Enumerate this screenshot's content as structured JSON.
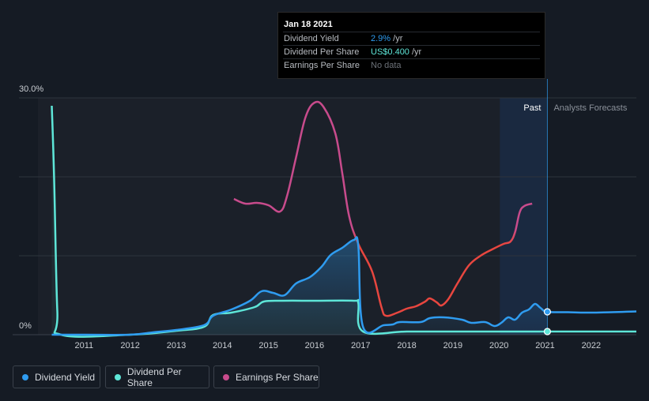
{
  "tooltip": {
    "date": "Jan 18 2021",
    "rows": [
      {
        "label": "Dividend Yield",
        "value": "2.9%",
        "unit": " /yr",
        "color": "#2f9cf0"
      },
      {
        "label": "Dividend Per Share",
        "value": "US$0.400",
        "unit": " /yr",
        "color": "#5ee6d8"
      },
      {
        "label": "Earnings Per Share",
        "value": "No data",
        "unit": "",
        "color": "#6c7178"
      }
    ]
  },
  "legend": {
    "items": [
      {
        "label": "Dividend Yield",
        "color": "#2f9cf0"
      },
      {
        "label": "Dividend Per Share",
        "color": "#5ee6d8"
      },
      {
        "label": "Earnings Per Share",
        "color": "#c84b8c"
      }
    ]
  },
  "colors": {
    "background": "#151b24",
    "yield": "#2f9cf0",
    "dps": "#5ee6d8",
    "eps_high": "#c84b8c",
    "eps_low": "#e8463f",
    "grid": "#2d343d"
  },
  "chart_data": {
    "type": "line",
    "y_top_label": "30.0%",
    "y_bottom_label": "0%",
    "ylim": [
      0,
      30
    ],
    "xlim": [
      2010.0,
      2022.98
    ],
    "x_ticks": [
      "2011",
      "2012",
      "2013",
      "2014",
      "2015",
      "2016",
      "2017",
      "2018",
      "2019",
      "2020",
      "2021",
      "2022"
    ],
    "past_label": "Past",
    "forecast_label": "Analysts Forecasts",
    "highlight_start": 2020.02,
    "divider_x": 2021.05,
    "series": [
      {
        "name": "Dividend Yield",
        "color": "#2f9cf0",
        "points": [
          [
            2010.3,
            0
          ],
          [
            2011.0,
            0
          ],
          [
            2012.0,
            0
          ],
          [
            2012.5,
            0.3
          ],
          [
            2013.0,
            0.6
          ],
          [
            2013.6,
            1.2
          ],
          [
            2013.8,
            2.4
          ],
          [
            2014.2,
            3.2
          ],
          [
            2014.6,
            4.3
          ],
          [
            2014.85,
            5.5
          ],
          [
            2015.1,
            5.3
          ],
          [
            2015.35,
            5.0
          ],
          [
            2015.6,
            6.5
          ],
          [
            2015.9,
            7.3
          ],
          [
            2016.15,
            8.6
          ],
          [
            2016.35,
            10.1
          ],
          [
            2016.6,
            11.0
          ],
          [
            2016.85,
            12.0
          ],
          [
            2016.95,
            11.2
          ],
          [
            2017.05,
            1.0
          ],
          [
            2017.5,
            1.2
          ],
          [
            2017.7,
            1.3
          ],
          [
            2017.85,
            1.6
          ],
          [
            2018.3,
            1.6
          ],
          [
            2018.5,
            2.1
          ],
          [
            2018.8,
            2.2
          ],
          [
            2019.2,
            1.9
          ],
          [
            2019.4,
            1.5
          ],
          [
            2019.7,
            1.6
          ],
          [
            2019.9,
            1.1
          ],
          [
            2020.05,
            1.5
          ],
          [
            2020.2,
            2.2
          ],
          [
            2020.35,
            1.9
          ],
          [
            2020.5,
            2.8
          ],
          [
            2020.65,
            3.2
          ],
          [
            2020.78,
            3.9
          ],
          [
            2020.9,
            3.4
          ],
          [
            2021.05,
            2.9
          ],
          [
            2021.5,
            2.85
          ],
          [
            2022.0,
            2.8
          ],
          [
            2022.98,
            2.95
          ]
        ]
      },
      {
        "name": "Dividend Per Share",
        "color": "#5ee6d8",
        "points": [
          [
            2010.3,
            29.0
          ],
          [
            2010.35,
            20.0
          ],
          [
            2010.42,
            3.0
          ],
          [
            2010.5,
            0
          ],
          [
            2012.0,
            0
          ],
          [
            2013.0,
            0.5
          ],
          [
            2013.6,
            1.0
          ],
          [
            2013.8,
            2.5
          ],
          [
            2014.2,
            2.8
          ],
          [
            2014.7,
            3.5
          ],
          [
            2014.9,
            4.2
          ],
          [
            2015.3,
            4.3
          ],
          [
            2016.0,
            4.3
          ],
          [
            2016.85,
            4.3
          ],
          [
            2016.95,
            4.0
          ],
          [
            2017.05,
            0.4
          ],
          [
            2018.0,
            0.4
          ],
          [
            2019.0,
            0.4
          ],
          [
            2020.0,
            0.4
          ],
          [
            2021.05,
            0.4
          ],
          [
            2022.0,
            0.4
          ],
          [
            2022.98,
            0.4
          ]
        ]
      },
      {
        "name": "Earnings Per Share",
        "color": "#c84b8c",
        "points": [
          [
            2014.25,
            17.2
          ],
          [
            2014.5,
            16.6
          ],
          [
            2014.75,
            16.7
          ],
          [
            2015.0,
            16.4
          ],
          [
            2015.25,
            15.6
          ],
          [
            2015.4,
            17.5
          ],
          [
            2015.6,
            22.5
          ],
          [
            2015.8,
            27.5
          ],
          [
            2016.0,
            29.4
          ],
          [
            2016.2,
            28.8
          ],
          [
            2016.45,
            25.5
          ],
          [
            2016.6,
            20.5
          ],
          [
            2016.75,
            15.0
          ],
          [
            2016.95,
            11.5
          ],
          [
            2017.25,
            8.0
          ],
          [
            2017.45,
            3.5
          ],
          [
            2017.55,
            2.4
          ],
          [
            2017.8,
            2.8
          ],
          [
            2018.0,
            3.3
          ],
          [
            2018.2,
            3.6
          ],
          [
            2018.4,
            4.2
          ],
          [
            2018.5,
            4.6
          ],
          [
            2018.65,
            4.1
          ],
          [
            2018.75,
            3.7
          ],
          [
            2018.9,
            4.5
          ],
          [
            2019.1,
            6.5
          ],
          [
            2019.35,
            8.8
          ],
          [
            2019.6,
            10.0
          ],
          [
            2019.85,
            10.8
          ],
          [
            2020.1,
            11.5
          ],
          [
            2020.25,
            11.8
          ],
          [
            2020.35,
            13.0
          ],
          [
            2020.45,
            15.5
          ],
          [
            2020.55,
            16.3
          ],
          [
            2020.72,
            16.6
          ]
        ]
      }
    ]
  }
}
